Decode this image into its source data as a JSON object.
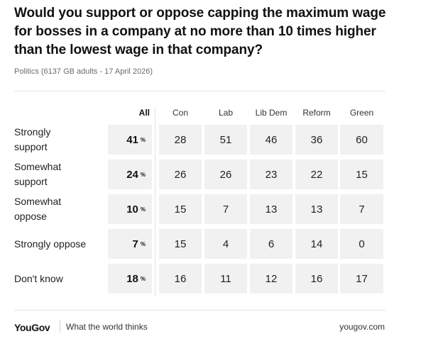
{
  "header": {
    "title": "Would you support or oppose capping the maximum wage for bosses in a company at no more than 10 times higher than the lowest wage in that company?",
    "subtitle": "Politics (6137 GB adults - 17 April 2026)"
  },
  "chart_data": {
    "type": "table",
    "title": "Would you support or oppose capping the maximum wage for bosses in a company at no more than 10 times higher than the lowest wage in that company?",
    "columns": [
      "All",
      "Con",
      "Lab",
      "Lib Dem",
      "Reform",
      "Green"
    ],
    "percent_sign": "%",
    "rows": [
      {
        "label": "Strongly support",
        "values": [
          41,
          28,
          51,
          46,
          36,
          60
        ]
      },
      {
        "label": "Somewhat support",
        "values": [
          24,
          26,
          26,
          23,
          22,
          15
        ]
      },
      {
        "label": "Somewhat oppose",
        "values": [
          10,
          15,
          7,
          13,
          13,
          7
        ]
      },
      {
        "label": "Strongly oppose",
        "values": [
          7,
          15,
          4,
          6,
          14,
          0
        ]
      },
      {
        "label": "Don't know",
        "values": [
          18,
          16,
          11,
          12,
          16,
          17
        ]
      }
    ]
  },
  "footer": {
    "logo": "YouGov",
    "tagline": "What the world thinks",
    "url": "yougov.com"
  },
  "colors": {
    "cell_background": "#f1f1f1",
    "rule": "#e3e3e3",
    "text": "#1a1a1a",
    "muted": "#6b6b6b"
  }
}
